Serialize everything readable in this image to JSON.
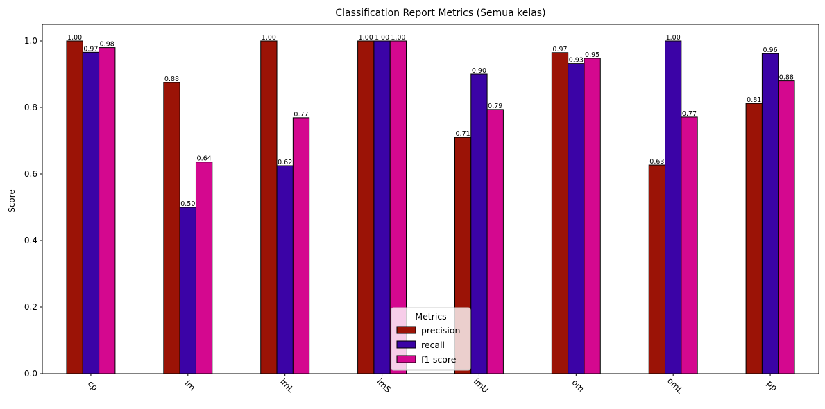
{
  "chart_data": {
    "type": "bar",
    "title": "Classification Report Metrics (Semua kelas)",
    "xlabel": "",
    "ylabel": "Score",
    "categories": [
      "cp",
      "im",
      "imL",
      "imS",
      "imU",
      "om",
      "omL",
      "pp"
    ],
    "series": [
      {
        "name": "precision",
        "color": "#9b1306",
        "values": [
          1.0,
          0.875,
          1.0,
          1.0,
          0.71,
          0.965,
          0.627,
          0.812
        ],
        "labels": [
          "1.00",
          "0.88",
          "1.00",
          "1.00",
          "0.71",
          "0.97",
          "0.63",
          "0.81"
        ]
      },
      {
        "name": "recall",
        "color": "#3b03a6",
        "values": [
          0.966,
          0.5,
          0.625,
          1.0,
          0.9,
          0.932,
          1.0,
          0.962
        ],
        "labels": [
          "0.97",
          "0.50",
          "0.62",
          "1.00",
          "0.90",
          "0.93",
          "1.00",
          "0.96"
        ]
      },
      {
        "name": "f1-score",
        "color": "#d4088f",
        "values": [
          0.98,
          0.636,
          0.769,
          1.0,
          0.794,
          0.948,
          0.771,
          0.88
        ],
        "labels": [
          "0.98",
          "0.64",
          "0.77",
          "1.00",
          "0.79",
          "0.95",
          "0.77",
          "0.88"
        ]
      }
    ],
    "ylim": [
      0,
      1.05
    ],
    "yticks": [
      "0.0",
      "0.2",
      "0.4",
      "0.6",
      "0.8",
      "1.0"
    ],
    "legend": {
      "title": "Metrics",
      "placement": "lower-center"
    },
    "grid": false
  }
}
